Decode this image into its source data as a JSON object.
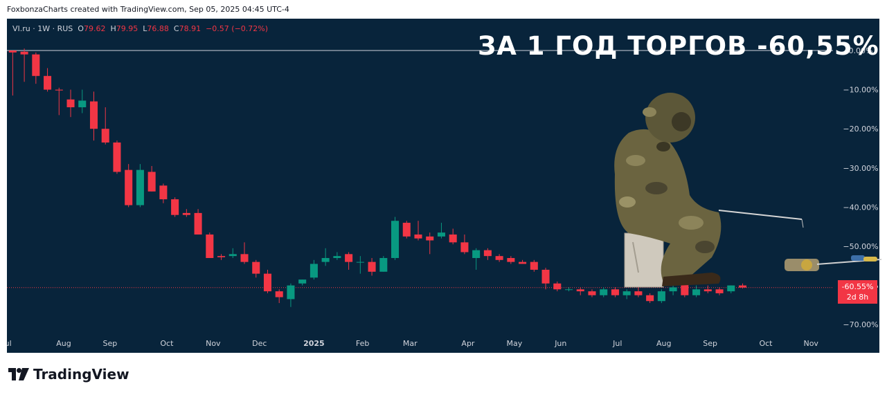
{
  "credit": "FoxbonzaCharts created with TradingView.com, Sep 05, 2025 04:45 UTC-4",
  "legend": {
    "symbol": "VI.ru · 1W · RUS",
    "o_label": "O",
    "o_value": "79.62",
    "h_label": "H",
    "h_value": "79.95",
    "l_label": "L",
    "l_value": "76.88",
    "c_label": "C",
    "c_value": "78.91",
    "change": "−0.57 (−0.72%)"
  },
  "headline": "ЗА 1 ГОД ТОРГОВ -60,55%",
  "price_badge": {
    "value": "-60.55%",
    "countdown": "2d 8h"
  },
  "logo_text": "TradingView",
  "colors": {
    "background": "#08243b",
    "up": "#089981",
    "down": "#f23645",
    "axis_text": "#d1d4dc"
  },
  "icons": [
    "tradingview-logo-icon",
    "fisherman-figure-icon",
    "fishing-rod-icon"
  ],
  "chart_data": {
    "type": "candlestick",
    "unit": "%",
    "y_scale": "percent-from-first-open",
    "ylim": [
      -72,
      3
    ],
    "y_ticks": [
      0,
      -10,
      -20,
      -30,
      -40,
      -50,
      -60,
      -70
    ],
    "y_tick_labels": [
      "0.00%",
      "−10.00%",
      "−20.00%",
      "−30.00%",
      "−40.00%",
      "−50.00%",
      "−60.00%",
      "−70.00%"
    ],
    "x_labels": [
      "Jul",
      "Aug",
      "Sep",
      "Oct",
      "Nov",
      "Dec",
      "2025",
      "Feb",
      "Mar",
      "Apr",
      "May",
      "Jun",
      "Jul",
      "Aug",
      "Sep",
      "Oct",
      "Nov"
    ],
    "x_label_weeks": [
      0,
      4.9,
      8.9,
      13.8,
      17.8,
      21.8,
      26.5,
      30.7,
      34.8,
      39.8,
      43.8,
      47.8,
      52.7,
      56.7,
      60.7,
      65.5,
      69.4
    ],
    "weeks_total": 71.3,
    "last_value": -60.55,
    "grid": false,
    "candles": [
      {
        "o": 0.0,
        "h": 0.0,
        "l": -11.5,
        "c": -0.5
      },
      {
        "o": -0.3,
        "h": 0.5,
        "l": -8.0,
        "c": -1.0
      },
      {
        "o": -1.0,
        "h": -0.5,
        "l": -8.5,
        "c": -6.5
      },
      {
        "o": -6.5,
        "h": -4.5,
        "l": -10.5,
        "c": -10.0
      },
      {
        "o": -10.0,
        "h": -9.5,
        "l": -16.5,
        "c": -10.2
      },
      {
        "o": -12.5,
        "h": -10.0,
        "l": -17.0,
        "c": -14.5
      },
      {
        "o": -14.5,
        "h": -10.0,
        "l": -16.0,
        "c": -12.8
      },
      {
        "o": -13.0,
        "h": -10.5,
        "l": -23.0,
        "c": -20.0
      },
      {
        "o": -20.0,
        "h": -14.5,
        "l": -24.0,
        "c": -23.5
      },
      {
        "o": -23.5,
        "h": -23.0,
        "l": -31.5,
        "c": -31.0
      },
      {
        "o": -30.5,
        "h": -29.0,
        "l": -40.0,
        "c": -39.5
      },
      {
        "o": -39.5,
        "h": -29.0,
        "l": -40.0,
        "c": -30.5
      },
      {
        "o": -31.0,
        "h": -29.5,
        "l": -36.0,
        "c": -36.0
      },
      {
        "o": -34.5,
        "h": -34.0,
        "l": -39.0,
        "c": -38.0
      },
      {
        "o": -38.0,
        "h": -37.5,
        "l": -42.5,
        "c": -42.0
      },
      {
        "o": -41.5,
        "h": -40.5,
        "l": -42.5,
        "c": -42.0
      },
      {
        "o": -41.5,
        "h": -40.5,
        "l": -47.0,
        "c": -47.0
      },
      {
        "o": -47.0,
        "h": -46.5,
        "l": -53.0,
        "c": -53.0
      },
      {
        "o": -52.5,
        "h": -52.0,
        "l": -53.5,
        "c": -52.8
      },
      {
        "o": -52.5,
        "h": -50.5,
        "l": -53.0,
        "c": -52.0
      },
      {
        "o": -52.0,
        "h": -49.0,
        "l": -54.5,
        "c": -54.0
      },
      {
        "o": -54.0,
        "h": -53.5,
        "l": -58.0,
        "c": -57.0
      },
      {
        "o": -57.0,
        "h": -56.0,
        "l": -62.0,
        "c": -61.5
      },
      {
        "o": -61.5,
        "h": -61.0,
        "l": -64.5,
        "c": -63.0
      },
      {
        "o": -63.5,
        "h": -59.5,
        "l": -65.5,
        "c": -60.0
      },
      {
        "o": -59.5,
        "h": -58.5,
        "l": -60.0,
        "c": -58.5
      },
      {
        "o": -58.0,
        "h": -53.5,
        "l": -58.5,
        "c": -54.5
      },
      {
        "o": -54.0,
        "h": -50.5,
        "l": -55.0,
        "c": -53.0
      },
      {
        "o": -53.0,
        "h": -51.5,
        "l": -53.5,
        "c": -52.5
      },
      {
        "o": -52.0,
        "h": -51.5,
        "l": -56.0,
        "c": -54.0
      },
      {
        "o": -54.0,
        "h": -52.5,
        "l": -57.0,
        "c": -54.0
      },
      {
        "o": -54.0,
        "h": -53.0,
        "l": -57.5,
        "c": -56.5
      },
      {
        "o": -56.5,
        "h": -52.5,
        "l": -56.5,
        "c": -53.0
      },
      {
        "o": -53.0,
        "h": -42.5,
        "l": -53.5,
        "c": -43.5
      },
      {
        "o": -44.0,
        "h": -43.5,
        "l": -48.0,
        "c": -47.5
      },
      {
        "o": -47.0,
        "h": -43.5,
        "l": -48.5,
        "c": -48.0
      },
      {
        "o": -47.5,
        "h": -46.5,
        "l": -52.0,
        "c": -48.5
      },
      {
        "o": -47.5,
        "h": -44.0,
        "l": -48.0,
        "c": -46.5
      },
      {
        "o": -47.0,
        "h": -45.5,
        "l": -49.5,
        "c": -49.0
      },
      {
        "o": -49.0,
        "h": -47.0,
        "l": -52.0,
        "c": -51.5
      },
      {
        "o": -53.0,
        "h": -50.5,
        "l": -56.0,
        "c": -51.0
      },
      {
        "o": -51.0,
        "h": -50.5,
        "l": -53.5,
        "c": -52.5
      },
      {
        "o": -52.5,
        "h": -52.0,
        "l": -54.0,
        "c": -53.5
      },
      {
        "o": -53.0,
        "h": -52.5,
        "l": -54.5,
        "c": -54.0
      },
      {
        "o": -54.0,
        "h": -53.5,
        "l": -54.5,
        "c": -54.5
      },
      {
        "o": -54.0,
        "h": -53.5,
        "l": -56.5,
        "c": -56.0
      },
      {
        "o": -56.0,
        "h": -55.5,
        "l": -61.0,
        "c": -59.5
      },
      {
        "o": -59.5,
        "h": -59.0,
        "l": -61.5,
        "c": -61.0
      },
      {
        "o": -61.0,
        "h": -60.5,
        "l": -61.5,
        "c": -61.0
      },
      {
        "o": -61.0,
        "h": -60.5,
        "l": -62.5,
        "c": -61.5
      },
      {
        "o": -61.5,
        "h": -61.0,
        "l": -63.0,
        "c": -62.5
      },
      {
        "o": -62.5,
        "h": -60.5,
        "l": -63.0,
        "c": -61.0
      },
      {
        "o": -61.0,
        "h": -60.5,
        "l": -63.0,
        "c": -62.5
      },
      {
        "o": -62.5,
        "h": -61.0,
        "l": -63.5,
        "c": -61.5
      },
      {
        "o": -61.5,
        "h": -60.5,
        "l": -63.0,
        "c": -62.5
      },
      {
        "o": -62.5,
        "h": -62.0,
        "l": -64.5,
        "c": -64.0
      },
      {
        "o": -64.0,
        "h": -61.0,
        "l": -64.5,
        "c": -61.5
      },
      {
        "o": -61.5,
        "h": -60.0,
        "l": -62.5,
        "c": -60.5
      },
      {
        "o": -59.5,
        "h": -58.0,
        "l": -63.0,
        "c": -62.5
      },
      {
        "o": -62.5,
        "h": -60.0,
        "l": -63.0,
        "c": -61.0
      },
      {
        "o": -61.0,
        "h": -60.0,
        "l": -62.0,
        "c": -61.5
      },
      {
        "o": -61.0,
        "h": -60.5,
        "l": -62.5,
        "c": -62.0
      },
      {
        "o": -61.5,
        "h": -60.0,
        "l": -62.0,
        "c": -60.0
      },
      {
        "o": -60.0,
        "h": -59.5,
        "l": -60.8,
        "c": -60.55
      }
    ]
  }
}
